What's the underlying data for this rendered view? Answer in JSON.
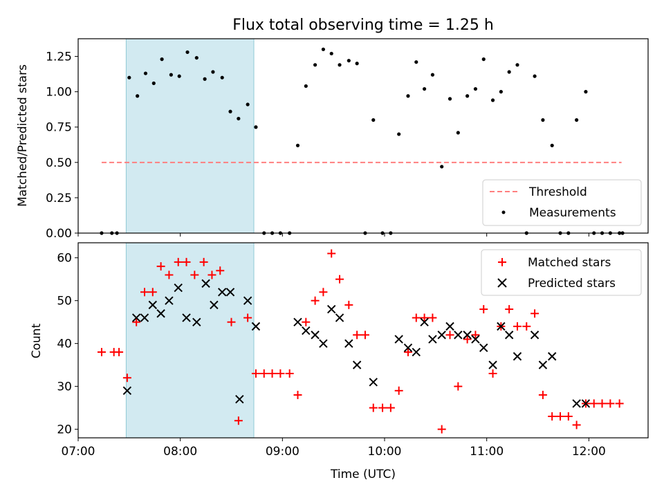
{
  "title": "Flux total observing time = 1.25 h",
  "colors": {
    "shade": "#add8e6",
    "threshold": "#ff7f7f",
    "matched": "#ff0000",
    "predicted": "#000000",
    "measurement": "#000000"
  },
  "chart_data": [
    {
      "type": "scatter",
      "panel": "top",
      "title": "Flux total observing time = 1.25 h",
      "xlabel": "",
      "ylabel": "Matched/Predicted stars",
      "xlim": [
        7.0,
        12.58
      ],
      "ylim": [
        0,
        1.375
      ],
      "yticks": [
        "0.00",
        "0.25",
        "0.50",
        "0.75",
        "1.00",
        "1.25"
      ],
      "ytick_values": [
        0,
        0.25,
        0.5,
        0.75,
        1.0,
        1.25
      ],
      "shaded_interval": [
        7.47,
        8.72
      ],
      "threshold": {
        "label": "Threshold",
        "value": 0.5,
        "x": [
          7.23,
          12.32
        ]
      },
      "measurements_label": "Measurements",
      "legend_position": "lower-right",
      "measurements": [
        [
          7.23,
          0
        ],
        [
          7.33,
          0
        ],
        [
          7.38,
          0
        ],
        [
          7.5,
          1.1
        ],
        [
          7.58,
          0.97
        ],
        [
          7.66,
          1.13
        ],
        [
          7.74,
          1.06
        ],
        [
          7.82,
          1.23
        ],
        [
          7.91,
          1.12
        ],
        [
          7.99,
          1.11
        ],
        [
          8.07,
          1.28
        ],
        [
          8.16,
          1.24
        ],
        [
          8.24,
          1.09
        ],
        [
          8.32,
          1.14
        ],
        [
          8.41,
          1.1
        ],
        [
          8.49,
          0.86
        ],
        [
          8.57,
          0.81
        ],
        [
          8.66,
          0.91
        ],
        [
          8.74,
          0.75
        ],
        [
          8.82,
          0
        ],
        [
          8.9,
          0
        ],
        [
          8.98,
          0
        ],
        [
          9.07,
          0
        ],
        [
          9.15,
          0.62
        ],
        [
          9.23,
          1.04
        ],
        [
          9.32,
          1.19
        ],
        [
          9.4,
          1.3
        ],
        [
          9.48,
          1.27
        ],
        [
          9.56,
          1.19
        ],
        [
          9.65,
          1.22
        ],
        [
          9.73,
          1.2
        ],
        [
          9.81,
          0
        ],
        [
          9.89,
          0.8
        ],
        [
          9.98,
          0
        ],
        [
          10.06,
          0
        ],
        [
          10.14,
          0.7
        ],
        [
          10.23,
          0.97
        ],
        [
          10.31,
          1.21
        ],
        [
          10.39,
          1.02
        ],
        [
          10.47,
          1.12
        ],
        [
          10.56,
          0.47
        ],
        [
          10.64,
          0.95
        ],
        [
          10.72,
          0.71
        ],
        [
          10.81,
          0.97
        ],
        [
          10.89,
          1.02
        ],
        [
          10.97,
          1.23
        ],
        [
          11.06,
          0.94
        ],
        [
          11.14,
          1.0
        ],
        [
          11.22,
          1.14
        ],
        [
          11.3,
          1.19
        ],
        [
          11.39,
          0
        ],
        [
          11.47,
          1.11
        ],
        [
          11.55,
          0.8
        ],
        [
          11.64,
          0.62
        ],
        [
          11.72,
          0
        ],
        [
          11.8,
          0
        ],
        [
          11.88,
          0.8
        ],
        [
          11.97,
          1.0
        ],
        [
          12.05,
          0
        ],
        [
          12.13,
          0
        ],
        [
          12.21,
          0
        ],
        [
          12.3,
          0
        ],
        [
          12.33,
          0
        ]
      ]
    },
    {
      "type": "scatter",
      "panel": "bottom",
      "xlabel": "Time (UTC)",
      "ylabel": "Count",
      "xlim": [
        7.0,
        12.58
      ],
      "ylim": [
        18.0,
        63.5
      ],
      "yticks": [
        "20",
        "30",
        "40",
        "50",
        "60"
      ],
      "ytick_values": [
        20,
        30,
        40,
        50,
        60
      ],
      "xticks": [
        "07:00",
        "08:00",
        "09:00",
        "10:00",
        "11:00",
        "12:00"
      ],
      "xtick_values": [
        7,
        8,
        9,
        10,
        11,
        12
      ],
      "shaded_interval": [
        7.47,
        8.72
      ],
      "legend_position": "upper-right",
      "series": [
        {
          "name": "Matched stars",
          "marker": "plus",
          "points": [
            [
              7.23,
              38
            ],
            [
              7.35,
              38
            ],
            [
              7.4,
              38
            ],
            [
              7.48,
              32
            ],
            [
              7.57,
              45
            ],
            [
              7.65,
              52
            ],
            [
              7.73,
              52
            ],
            [
              7.81,
              58
            ],
            [
              7.89,
              56
            ],
            [
              7.98,
              59
            ],
            [
              8.06,
              59
            ],
            [
              8.14,
              56
            ],
            [
              8.23,
              59
            ],
            [
              8.31,
              56
            ],
            [
              8.39,
              57
            ],
            [
              8.5,
              45
            ],
            [
              8.57,
              22
            ],
            [
              8.66,
              46
            ],
            [
              8.74,
              33
            ],
            [
              8.82,
              33
            ],
            [
              8.9,
              33
            ],
            [
              8.98,
              33
            ],
            [
              9.07,
              33
            ],
            [
              9.15,
              28
            ],
            [
              9.23,
              45
            ],
            [
              9.32,
              50
            ],
            [
              9.4,
              52
            ],
            [
              9.48,
              61
            ],
            [
              9.56,
              55
            ],
            [
              9.65,
              49
            ],
            [
              9.73,
              42
            ],
            [
              9.81,
              42
            ],
            [
              9.89,
              25
            ],
            [
              9.98,
              25
            ],
            [
              10.06,
              25
            ],
            [
              10.14,
              29
            ],
            [
              10.23,
              38
            ],
            [
              10.31,
              46
            ],
            [
              10.39,
              46
            ],
            [
              10.47,
              46
            ],
            [
              10.56,
              20
            ],
            [
              10.64,
              42
            ],
            [
              10.72,
              30
            ],
            [
              10.81,
              41
            ],
            [
              10.89,
              42
            ],
            [
              10.97,
              48
            ],
            [
              11.06,
              33
            ],
            [
              11.14,
              44
            ],
            [
              11.22,
              48
            ],
            [
              11.3,
              44
            ],
            [
              11.39,
              44
            ],
            [
              11.47,
              47
            ],
            [
              11.55,
              28
            ],
            [
              11.64,
              23
            ],
            [
              11.72,
              23
            ],
            [
              11.8,
              23
            ],
            [
              11.88,
              21
            ],
            [
              11.97,
              26
            ],
            [
              12.05,
              26
            ],
            [
              12.13,
              26
            ],
            [
              12.21,
              26
            ],
            [
              12.3,
              26
            ]
          ]
        },
        {
          "name": "Predicted stars",
          "marker": "cross",
          "points": [
            [
              7.48,
              29
            ],
            [
              7.57,
              46
            ],
            [
              7.65,
              46
            ],
            [
              7.73,
              49
            ],
            [
              7.81,
              47
            ],
            [
              7.89,
              50
            ],
            [
              7.98,
              53
            ],
            [
              8.06,
              46
            ],
            [
              8.16,
              45
            ],
            [
              8.25,
              54
            ],
            [
              8.33,
              49
            ],
            [
              8.41,
              52
            ],
            [
              8.49,
              52
            ],
            [
              8.58,
              27
            ],
            [
              8.66,
              50
            ],
            [
              8.74,
              44
            ],
            [
              9.15,
              45
            ],
            [
              9.23,
              43
            ],
            [
              9.32,
              42
            ],
            [
              9.4,
              40
            ],
            [
              9.48,
              48
            ],
            [
              9.56,
              46
            ],
            [
              9.65,
              40
            ],
            [
              9.73,
              35
            ],
            [
              9.89,
              31
            ],
            [
              10.14,
              41
            ],
            [
              10.23,
              39
            ],
            [
              10.31,
              38
            ],
            [
              10.39,
              45
            ],
            [
              10.47,
              41
            ],
            [
              10.56,
              42
            ],
            [
              10.64,
              44
            ],
            [
              10.72,
              42
            ],
            [
              10.81,
              42
            ],
            [
              10.89,
              41
            ],
            [
              10.97,
              39
            ],
            [
              11.06,
              35
            ],
            [
              11.14,
              44
            ],
            [
              11.22,
              42
            ],
            [
              11.3,
              37
            ],
            [
              11.47,
              42
            ],
            [
              11.55,
              35
            ],
            [
              11.64,
              37
            ],
            [
              11.88,
              26
            ],
            [
              11.97,
              26
            ]
          ]
        }
      ]
    }
  ]
}
